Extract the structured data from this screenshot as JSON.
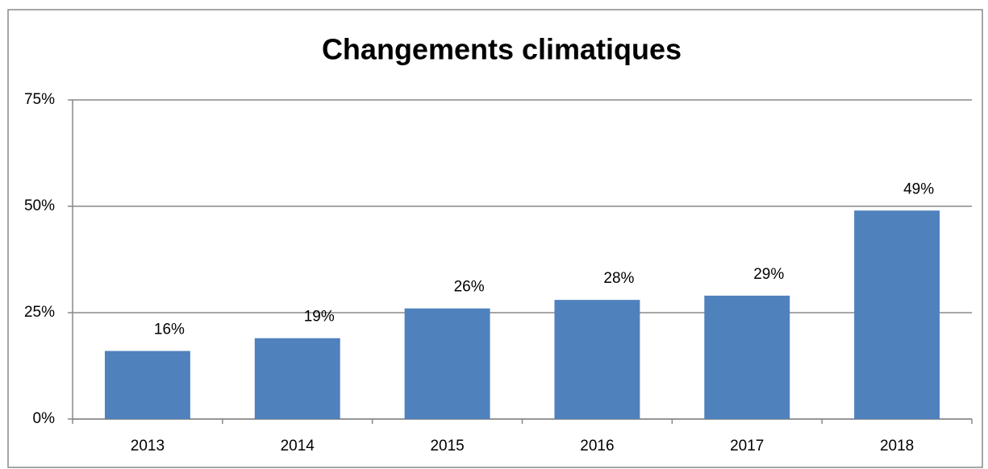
{
  "chart_data": {
    "type": "bar",
    "title": "Changements climatiques",
    "categories": [
      "2013",
      "2014",
      "2015",
      "2016",
      "2017",
      "2018"
    ],
    "values": [
      16,
      19,
      26,
      28,
      29,
      49
    ],
    "value_labels": [
      "16%",
      "19%",
      "26%",
      "28%",
      "29%",
      "49%"
    ],
    "color": "#4f81bd",
    "ylim": [
      0,
      75
    ],
    "yticks": [
      {
        "value": 0,
        "label": "0%"
      },
      {
        "value": 25,
        "label": "25%"
      },
      {
        "value": 50,
        "label": "50%"
      },
      {
        "value": 75,
        "label": "75%"
      }
    ],
    "grid": true
  }
}
